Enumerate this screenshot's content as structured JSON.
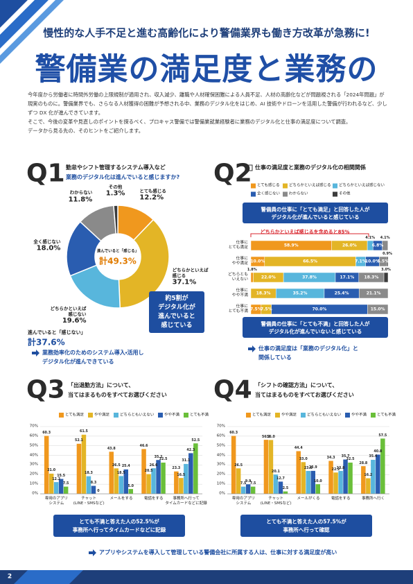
{
  "header": {
    "tagline": "慢性的な人手不足と進む高齢化により警備業界も働き方改革が急務に!",
    "title": "警備業の満足度と業務の"
  },
  "intro": [
    "今年度から労働者に時間外労働の上限規制が適用され、収入減少、離職や人材確保困難による人員不足、人材の高齢化などが問題視される「2024年問題」が現実のものに。警備業界でも、さらなる人材獲得の困難が予想される中、業務のデジタル化をはじめ、AI 技術やドローンを活用した警備が行われるなど、少しずつ DX 化が進んできています。",
    "そこで、今後の変革や見直しのポイントを探るべく、プロキャス警備では警備業就業経験者に業務のデジタル化と仕事の満足度について調査。",
    "データから見る先の、そのヒントをご紹介します。"
  ],
  "chart_data": [
    {
      "type": "pie",
      "label": "Q1",
      "question": [
        "勤怠やシフト管理するシステム導入など",
        "業務のデジタル化は進んでいると感じますか?"
      ],
      "categories": [
        "とても感じる",
        "どちらかといえば感じる",
        "どちらかといえば感じない",
        "全く感じない",
        "わからない",
        "その他"
      ],
      "values": [
        12.2,
        37.1,
        19.6,
        18.0,
        11.8,
        1.3
      ],
      "value_labels": [
        "12.2%",
        "37.1%",
        "19.6%",
        "18.0%",
        "11.8%",
        "1.3%"
      ],
      "colors": [
        "#f0981e",
        "#e3b526",
        "#58b6dc",
        "#2a5db0",
        "#8a8a8a",
        "#3c3c3c"
      ],
      "center": [
        "進んでいると「感じる」",
        "計49.3%"
      ],
      "total_negative": [
        "進んでいると「感じない」",
        "計37.6%"
      ],
      "callout": [
        "約5割が",
        "デジタル化が",
        "進んでいると",
        "感じている"
      ],
      "conclusion": [
        "業務効率化のためのシステム導入・活用し",
        "デジタル化が進んできている"
      ]
    },
    {
      "type": "stacked_bar",
      "label": "Q2",
      "title": "仕事の満足度と業務のデジタル化の相関関係",
      "callout_top": [
        "警備員の仕事に「とても満足」と回答した人が",
        "デジタル化が進んでいると感じている"
      ],
      "bracket": "どちらかといえば感じるを含めると85%",
      "categories": [
        "仕事に\nとても満足",
        "仕事に\nやや満足",
        "どちらとも\nいえない",
        "仕事に\nやや不満",
        "仕事に\nとても不満"
      ],
      "xlim": [
        0,
        100
      ],
      "series": [
        {
          "name": "とても感じる",
          "color": "#f0981e",
          "values": [
            58.9,
            10.0,
            1.8,
            0,
            7.5
          ],
          "value_labels": [
            "58.9%",
            "10.0%",
            "1.8%",
            null,
            "7.5%"
          ]
        },
        {
          "name": "どちらかといえば感じる",
          "color": "#e3b526",
          "values": [
            26.0,
            66.5,
            22.0,
            18.3,
            7.5
          ],
          "value_labels": [
            "26.0%",
            "66.5%",
            "22.0%",
            "18.3%",
            "7.5%"
          ]
        },
        {
          "name": "どちらかといえば感じない",
          "color": "#58b6dc",
          "values": [
            4.1,
            7.1,
            37.8,
            35.2,
            0
          ],
          "value_labels": [
            "4.1%",
            "7.1%",
            "37.8%",
            "35.2%",
            null
          ]
        },
        {
          "name": "全く感じない",
          "color": "#2a5db0",
          "values": [
            6.8,
            10.0,
            17.1,
            25.4,
            70.0
          ],
          "value_labels": [
            "6.8%",
            "10.0%",
            "17.1%",
            "25.4%",
            "70.0%"
          ]
        },
        {
          "name": "わからない",
          "color": "#8a8a8a",
          "values": [
            4.1,
            5.5,
            18.3,
            21.1,
            15.0
          ],
          "value_labels": [
            "4.1%",
            "5.5%",
            "18.3%",
            "21.1%",
            "15.0%"
          ]
        },
        {
          "name": "その他",
          "color": "#3c3c3c",
          "values": [
            0,
            0.9,
            3.0,
            0,
            0
          ],
          "value_labels": [
            null,
            "0.9%",
            "3.0%",
            null,
            null
          ]
        }
      ],
      "callout_bottom": [
        "警備員の仕事に「とても不満」と回答した人が",
        "デジタル化が進んでいないと感じている"
      ],
      "conclusion": [
        "仕事の満足度は「業務のデジタル化」と",
        "関係している"
      ]
    },
    {
      "type": "bar",
      "label": "Q3",
      "question": [
        "「出退勤方法」について、",
        "当てはまるものをすべてお選びください"
      ],
      "categories": [
        "専用のアプリ\nシステム",
        "チャット\n(LINE・SMSなど)",
        "メールをする",
        "電話をする",
        "事務所へ行って\nタイムカードなどに記録"
      ],
      "ylim": [
        0,
        70
      ],
      "yticks": [
        {
          "value": 0,
          "label": "0%"
        },
        {
          "value": 10,
          "label": "10%"
        },
        {
          "value": 20,
          "label": "20%"
        },
        {
          "value": 30,
          "label": "30%"
        },
        {
          "value": 40,
          "label": "40%"
        },
        {
          "value": 50,
          "label": "50%"
        },
        {
          "value": 60,
          "label": "60%"
        },
        {
          "value": 70,
          "label": "70%"
        }
      ],
      "grid": true,
      "series": [
        {
          "name": "とても満足",
          "color": "#f0981e",
          "values": [
            60.3,
            52.1,
            43.8,
            46.6,
            23.3
          ],
          "value_labels": [
            "60.3",
            "52.1",
            "43.8",
            "46.6",
            "23.3"
          ]
        },
        {
          "name": "やや満足",
          "color": "#e3b526",
          "values": [
            21.0,
            61.5,
            26.5,
            20.5,
            16.5
          ],
          "value_labels": [
            "21.0",
            "61.5",
            "26.5",
            "20.5",
            "16.5"
          ]
        },
        {
          "name": "どちらともいえない",
          "color": "#58b6dc",
          "values": [
            12.2,
            18.3,
            18.5,
            26.6,
            31.1
          ],
          "value_labels": [
            "12.2",
            "18.3",
            "18.5",
            "26.6",
            "31.1"
          ]
        },
        {
          "name": "やや不満",
          "color": "#2a5db0",
          "values": [
            15.5,
            8.3,
            25.4,
            35.2,
            42.3
          ],
          "value_labels": [
            "15.5",
            "8.3",
            "25.4",
            "35.2",
            "42.3"
          ]
        },
        {
          "name": "とても不満",
          "color": "#6abf3a",
          "values": [
            7.5,
            0,
            5.0,
            32.5,
            52.5
          ],
          "value_labels": [
            "7.5",
            "0",
            "5.0",
            "32.5",
            "52.5"
          ]
        }
      ],
      "callout": [
        "とても不満と答えた人の52.5%が",
        "事務所へ行ってタイムカードなどに記録"
      ]
    },
    {
      "type": "bar",
      "label": "Q4",
      "question": [
        "「シフトの確認方法」について、",
        "当てはまるものをすべてお選びください"
      ],
      "categories": [
        "専用のアプリ\nシステム",
        "チャット\n(LINE・SMSなど)",
        "メールがくる",
        "電話をする",
        "事務所へ行く"
      ],
      "ylim": [
        0,
        70
      ],
      "yticks": [
        {
          "value": 0,
          "label": "0%"
        },
        {
          "value": 10,
          "label": "10%"
        },
        {
          "value": 20,
          "label": "20%"
        },
        {
          "value": 30,
          "label": "30%"
        },
        {
          "value": 40,
          "label": "40%"
        },
        {
          "value": 50,
          "label": "50%"
        },
        {
          "value": 60,
          "label": "60%"
        },
        {
          "value": 70,
          "label": "70%"
        }
      ],
      "grid": true,
      "series": [
        {
          "name": "とても満足",
          "color": "#f0981e",
          "values": [
            60.3,
            56.2,
            44.4,
            34.3,
            28.8
          ],
          "value_labels": [
            "60.3",
            "56.2",
            "44.4",
            "34.3",
            "28.8"
          ]
        },
        {
          "name": "やや満足",
          "color": "#e3b526",
          "values": [
            26.5,
            56.0,
            33.0,
            22.2,
            16.2
          ],
          "value_labels": [
            "26.5",
            "56.0",
            "33.0",
            "22.2",
            "16.2"
          ]
        },
        {
          "name": "どちらともいえない",
          "color": "#58b6dc",
          "values": [
            7.5,
            20.1,
            23.8,
            23.8,
            35.4
          ],
          "value_labels": [
            "7.5",
            "20.1",
            "23.8",
            "23.8",
            "35.4"
          ]
        },
        {
          "name": "やや不満",
          "color": "#2a5db0",
          "values": [
            9.9,
            12.7,
            23.9,
            35.7,
            40.8
          ],
          "value_labels": [
            "9.9",
            "12.7",
            "23.9",
            "35.7",
            "40.8"
          ]
        },
        {
          "name": "とても不満",
          "color": "#6abf3a",
          "values": [
            7.5,
            2.5,
            10.0,
            32.5,
            57.5
          ],
          "value_labels": [
            "7.5",
            "2.5",
            "10.0",
            "32.5",
            "57.5"
          ]
        }
      ],
      "callout": [
        "とても不満と答えた人の57.5%が",
        "事務所へ行って確認"
      ]
    }
  ],
  "footer_conclusion": "アプリやシステムを導入して管理している警備会社に所属する人は、仕事に対する満足度が高い",
  "page_number": "2"
}
